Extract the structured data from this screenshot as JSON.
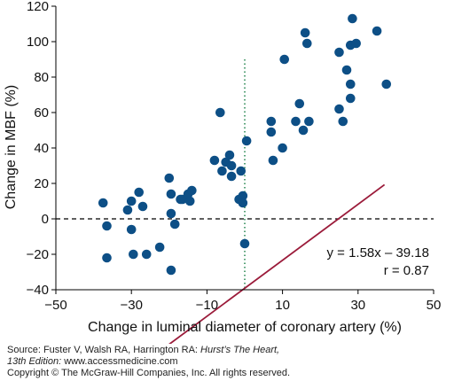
{
  "chart_data": {
    "type": "scatter",
    "xlabel": "Change in luminal diameter of coronary artery (%)",
    "ylabel": "Change in MBF (%)",
    "xlim": [
      -50,
      50
    ],
    "ylim": [
      -40,
      120
    ],
    "xticks": [
      -50,
      -30,
      -10,
      10,
      30,
      50
    ],
    "yticks": [
      -40,
      -20,
      0,
      20,
      40,
      60,
      80,
      100,
      120
    ],
    "grid": false,
    "reference_lines": [
      {
        "orientation": "horizontal",
        "value": 0,
        "style": "dashed",
        "color": "#000000"
      },
      {
        "orientation": "vertical",
        "value": 0,
        "style": "dotted",
        "color": "#2e8b57"
      }
    ],
    "regression": {
      "slope": 1.58,
      "intercept": -39.18,
      "x_range": [
        -24.2,
        37
      ],
      "color": "#9b1b3a"
    },
    "annotations": [
      "y = 1.58x – 39.18",
      "r = 0.87"
    ],
    "marker_color": "#0d4f86",
    "points": [
      [
        -37.5,
        9
      ],
      [
        -36.5,
        -4
      ],
      [
        -36.5,
        -22
      ],
      [
        -31,
        5
      ],
      [
        -30,
        10
      ],
      [
        -30,
        -6
      ],
      [
        -29.5,
        -20
      ],
      [
        -28,
        15
      ],
      [
        -27,
        7
      ],
      [
        -26,
        -20
      ],
      [
        -22.5,
        -16
      ],
      [
        -20,
        23
      ],
      [
        -19.5,
        14
      ],
      [
        -19.5,
        3
      ],
      [
        -19.5,
        -29
      ],
      [
        -18.5,
        -3
      ],
      [
        -17,
        11
      ],
      [
        -16.5,
        11
      ],
      [
        -15,
        14
      ],
      [
        -14.5,
        10
      ],
      [
        -14,
        16
      ],
      [
        -8,
        33
      ],
      [
        -6.5,
        60
      ],
      [
        -6,
        27
      ],
      [
        -5,
        32
      ],
      [
        -4,
        36
      ],
      [
        -3.5,
        30
      ],
      [
        -3.5,
        24
      ],
      [
        -1.5,
        11
      ],
      [
        -1,
        27
      ],
      [
        -0.5,
        13
      ],
      [
        -0.5,
        9
      ],
      [
        0,
        -14
      ],
      [
        0.5,
        44
      ],
      [
        7,
        49
      ],
      [
        7,
        55
      ],
      [
        7.5,
        33
      ],
      [
        10,
        40
      ],
      [
        10.5,
        90
      ],
      [
        13.5,
        55
      ],
      [
        14.5,
        65
      ],
      [
        15.5,
        50
      ],
      [
        16,
        105
      ],
      [
        16.5,
        99
      ],
      [
        17,
        55
      ],
      [
        25,
        94
      ],
      [
        25,
        62
      ],
      [
        26,
        55
      ],
      [
        27,
        84
      ],
      [
        28,
        76
      ],
      [
        28,
        68
      ],
      [
        28,
        98
      ],
      [
        28.5,
        113
      ],
      [
        29.5,
        99
      ],
      [
        35,
        106
      ],
      [
        37.5,
        76
      ]
    ]
  },
  "source": {
    "prefix": "Source: Fuster V, Walsh RA, Harrington RA: ",
    "book": "Hurst’s The Heart,",
    "edition": "13th Edition:",
    "url": " www.accessmedicine.com",
    "copyright": "Copyright © The McGraw-Hill Companies, Inc. All rights reserved."
  }
}
